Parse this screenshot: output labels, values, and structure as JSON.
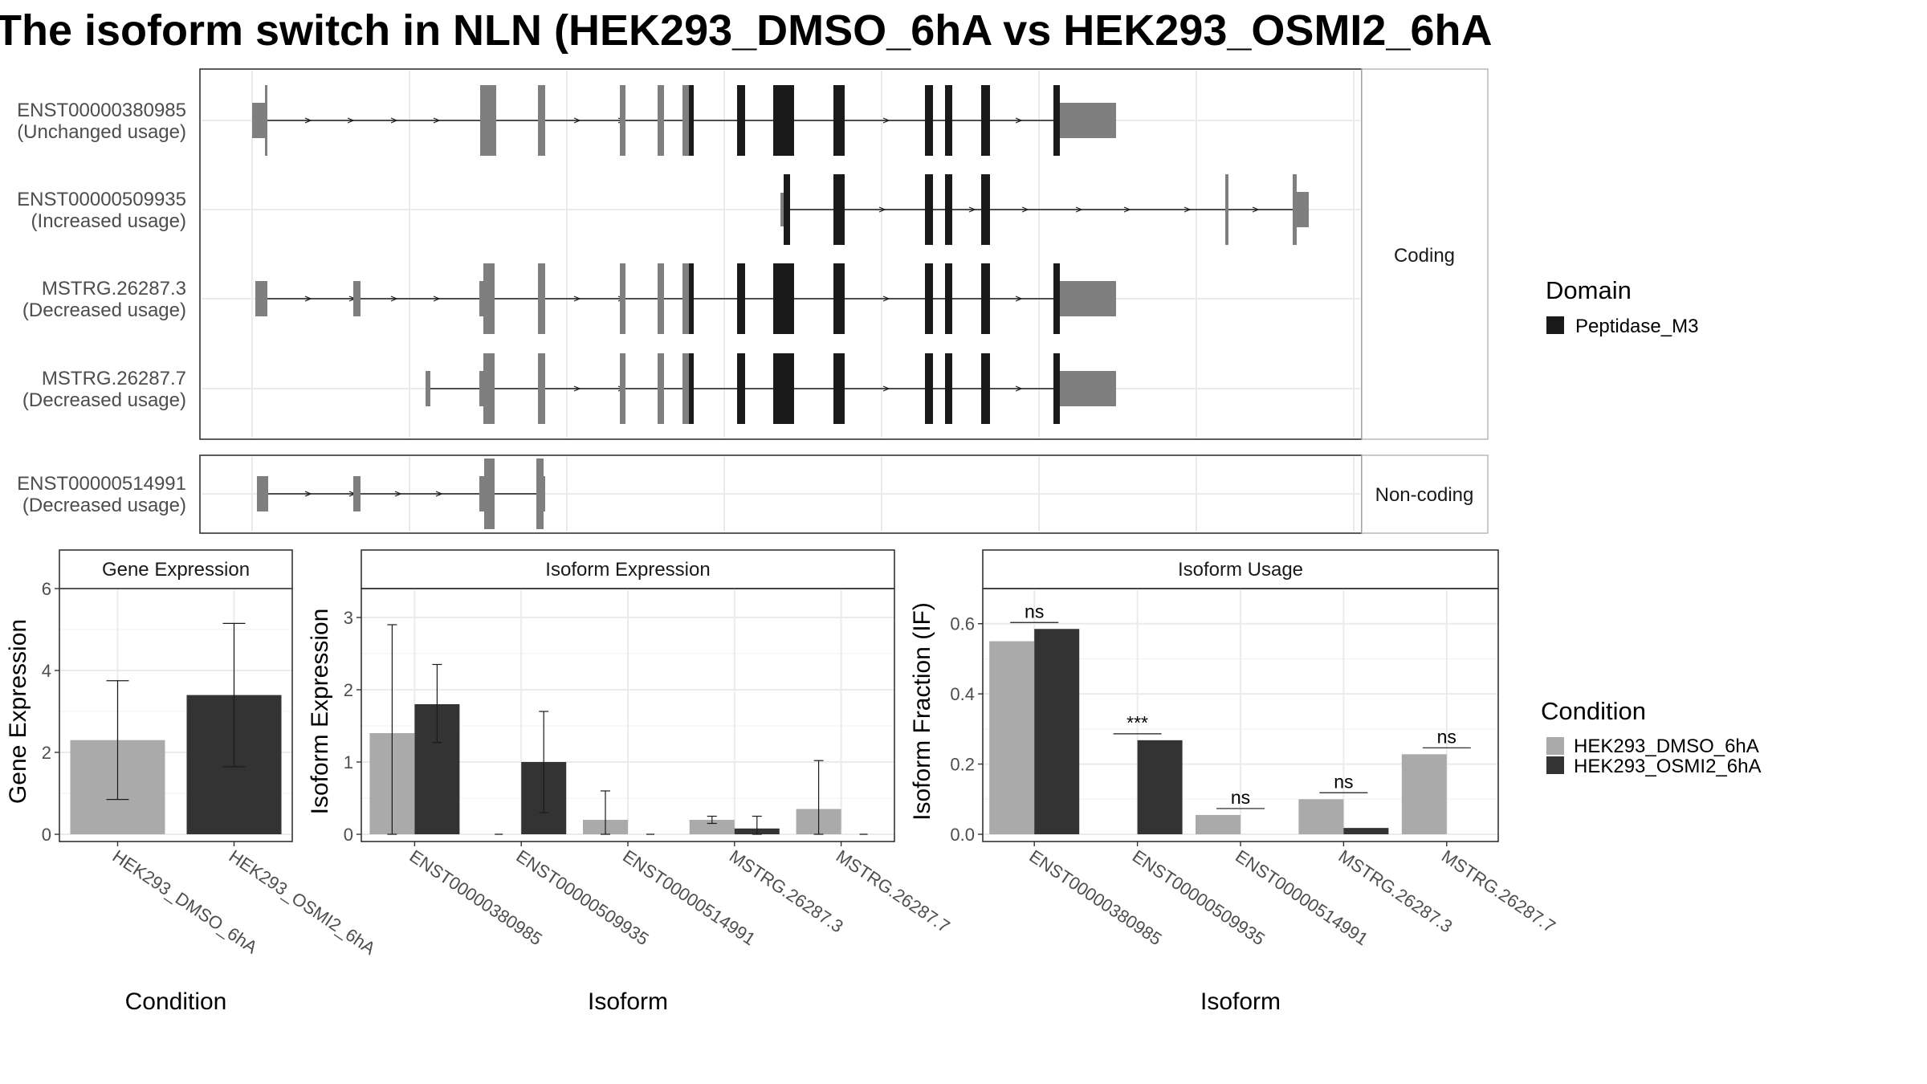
{
  "title": "The isoform switch in NLN (HEK293_DMSO_6hA vs HEK293_OSMI2_6hA",
  "colors": {
    "exon_gray": "#7f7f7f",
    "domain_black": "#1a1a1a",
    "cond1": "#aaaaaa",
    "cond2": "#333333",
    "grid": "#ebebeb",
    "strip_bg": "#ffffff"
  },
  "transcript_panel": {
    "strip_coding": "Coding",
    "strip_noncoding": "Non-coding",
    "transcripts": [
      {
        "id": "ENST00000380985",
        "usage": "(Unchanged usage)",
        "group": "coding"
      },
      {
        "id": "ENST00000509935",
        "usage": "(Increased usage)",
        "group": "coding"
      },
      {
        "id": "MSTRG.26287.3",
        "usage": "(Decreased usage)",
        "group": "coding"
      },
      {
        "id": "MSTRG.26287.7",
        "usage": "(Decreased usage)",
        "group": "coding"
      },
      {
        "id": "ENST00000514991",
        "usage": "(Decreased usage)",
        "group": "noncoding"
      }
    ]
  },
  "legend_domain": {
    "title": "Domain",
    "items": [
      "Peptidase_M3"
    ]
  },
  "legend_condition": {
    "title": "Condition",
    "items": [
      "HEK293_DMSO_6hA",
      "HEK293_OSMI2_6hA"
    ]
  },
  "chart_data": [
    {
      "type": "bar",
      "title": "Gene Expression",
      "xlabel": "Condition",
      "ylabel": "Gene Expression",
      "categories": [
        "HEK293_DMSO_6hA",
        "HEK293_OSMI2_6hA"
      ],
      "values": [
        2.3,
        3.4
      ],
      "error_low": [
        0.85,
        1.65
      ],
      "error_high": [
        3.75,
        5.15
      ],
      "ylim": [
        0,
        6
      ],
      "yticks": [
        0,
        2,
        4,
        6
      ],
      "grid": true
    },
    {
      "type": "bar",
      "title": "Isoform Expression",
      "xlabel": "Isoform",
      "ylabel": "Isoform Expression",
      "categories": [
        "ENST00000380985",
        "ENST00000509935",
        "ENST00000514991",
        "MSTRG.26287.3",
        "MSTRG.26287.7"
      ],
      "series": [
        {
          "name": "HEK293_DMSO_6hA",
          "values": [
            1.4,
            0.0,
            0.2,
            0.2,
            0.35
          ],
          "error_low": [
            0.0,
            0.0,
            0.0,
            0.15,
            0.0
          ],
          "error_high": [
            2.9,
            0.0,
            0.6,
            0.25,
            1.02
          ]
        },
        {
          "name": "HEK293_OSMI2_6hA",
          "values": [
            1.8,
            1.0,
            0.0,
            0.08,
            0.0
          ],
          "error_low": [
            1.27,
            0.3,
            0.0,
            0.0,
            0.0
          ],
          "error_high": [
            2.35,
            1.7,
            0.0,
            0.25,
            0.0
          ]
        }
      ],
      "ylim": [
        0,
        3.4
      ],
      "yticks": [
        0,
        1,
        2,
        3
      ],
      "grid": true
    },
    {
      "type": "bar",
      "title": "Isoform Usage",
      "xlabel": "Isoform",
      "ylabel": "Isoform Fraction (IF)",
      "categories": [
        "ENST00000380985",
        "ENST00000509935",
        "ENST00000514991",
        "MSTRG.26287.3",
        "MSTRG.26287.7"
      ],
      "series": [
        {
          "name": "HEK293_DMSO_6hA",
          "values": [
            0.55,
            0.0,
            0.055,
            0.1,
            0.228
          ]
        },
        {
          "name": "HEK293_OSMI2_6hA",
          "values": [
            0.585,
            0.268,
            0.0,
            0.018,
            0.0
          ]
        }
      ],
      "significance": [
        "ns",
        "***",
        "ns",
        "ns",
        "ns"
      ],
      "ylim": [
        0,
        0.7
      ],
      "yticks": [
        "0.0",
        "0.2",
        "0.4",
        "0.6"
      ],
      "grid": true
    }
  ]
}
